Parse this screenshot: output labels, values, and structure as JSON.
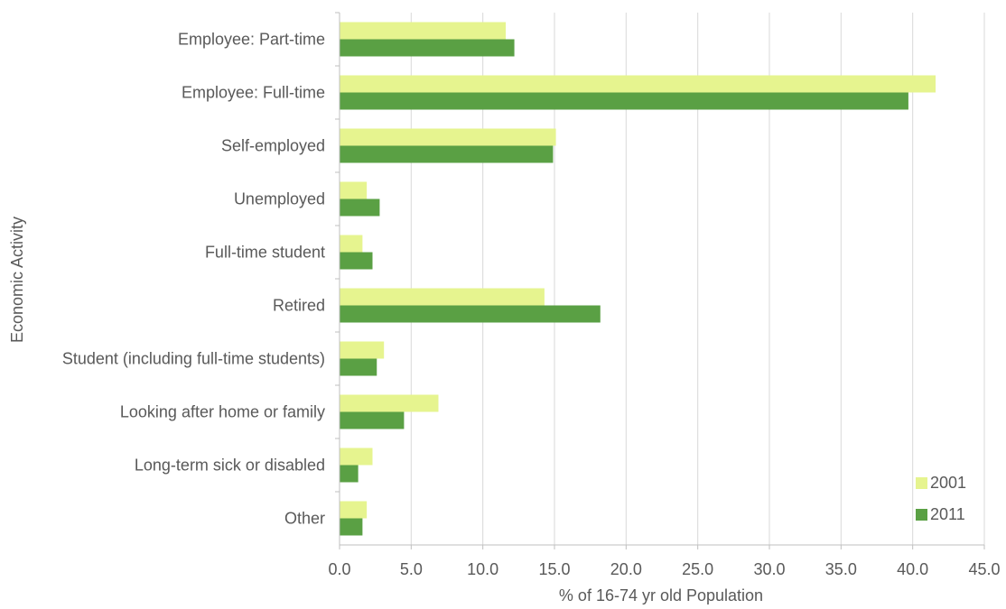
{
  "chart_data": {
    "type": "bar",
    "orientation": "horizontal",
    "title": "",
    "xlabel": "% of 16-74 yr old Population",
    "ylabel": "Economic Activity",
    "categories": [
      "Employee: Part-time",
      "Employee: Full-time",
      "Self-employed",
      "Unemployed",
      "Full-time student",
      "Retired",
      "Student (including full-time students)",
      "Looking after home or family",
      "Long-term sick or disabled",
      "Other"
    ],
    "series": [
      {
        "name": "2001",
        "color": "#e6f48f",
        "values": [
          11.6,
          41.6,
          15.1,
          1.9,
          1.6,
          14.3,
          3.1,
          6.9,
          2.3,
          1.9
        ]
      },
      {
        "name": "2011",
        "color": "#5aa044",
        "values": [
          12.2,
          39.7,
          14.9,
          2.8,
          2.3,
          18.2,
          2.6,
          4.5,
          1.3,
          1.6
        ]
      }
    ],
    "xlim": [
      0,
      45
    ],
    "xticks": [
      0,
      5,
      10,
      15,
      20,
      25,
      30,
      35,
      40,
      45
    ],
    "xtick_labels": [
      "0.0",
      "5.0",
      "10.0",
      "15.0",
      "20.0",
      "25.0",
      "30.0",
      "35.0",
      "40.0",
      "45.0"
    ],
    "grid": "vertical",
    "legend_position": "bottom-right"
  },
  "colors": {
    "grid": "#d9d9d9",
    "axis": "#bfbfbf",
    "text": "#595959"
  }
}
